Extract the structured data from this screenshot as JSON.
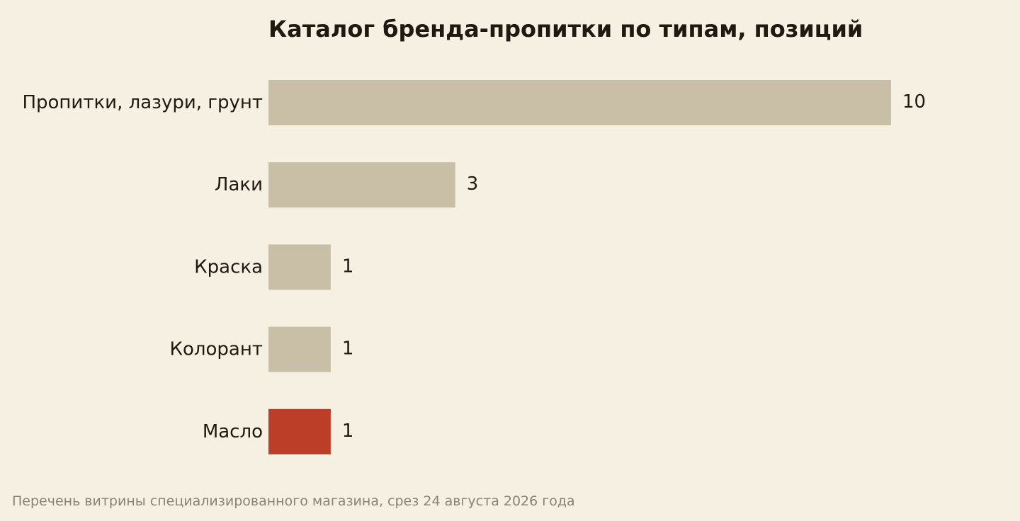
{
  "chart_data": {
    "type": "bar",
    "orientation": "horizontal",
    "title": "Каталог бренда-пропитки по типам, позиций",
    "categories": [
      "Пропитки, лазури, грунт",
      "Лаки",
      "Краска",
      "Колорант",
      "Масло"
    ],
    "values": [
      10,
      3,
      1,
      1,
      1
    ],
    "value_labels": [
      "10",
      "3",
      "1",
      "1",
      "1"
    ],
    "highlight_index": 4,
    "xlim": [
      0,
      10
    ],
    "grid": false,
    "legend": "none",
    "source": "Перечень витрины специализированного магазина, срез 24 августа 2026 года"
  },
  "colors": {
    "background": "#f6f0e3",
    "bar": "#c9bfa6",
    "highlight": "#bd3e28",
    "text": "#1e1a12",
    "muted": "#8a8374"
  }
}
